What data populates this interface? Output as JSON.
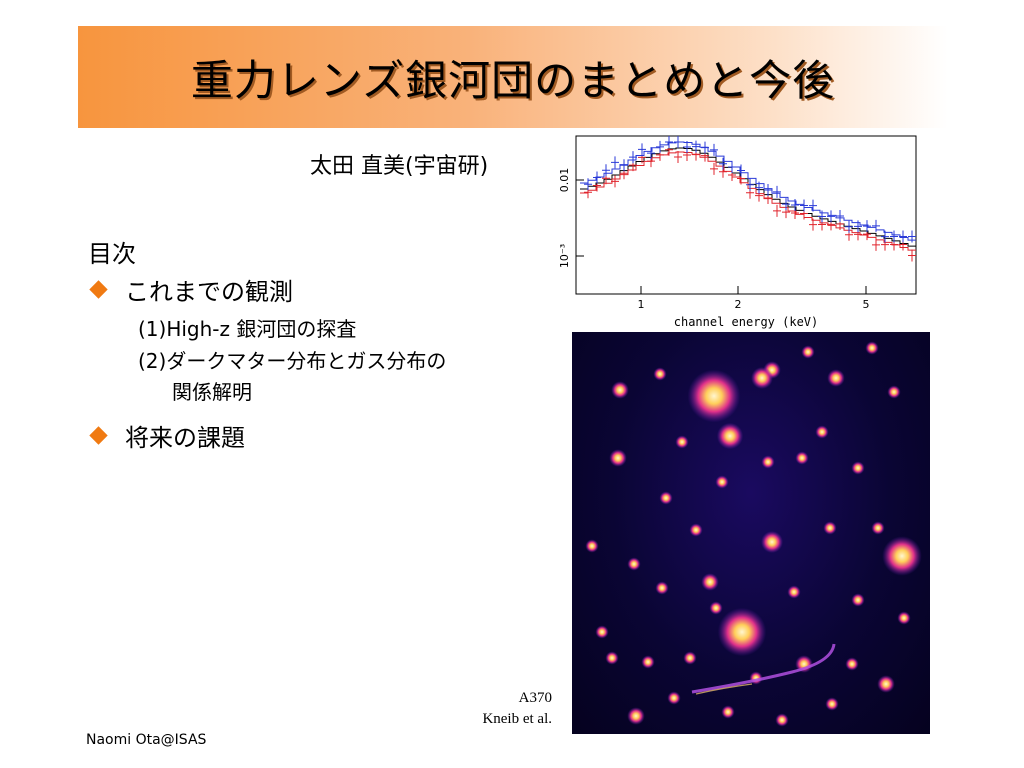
{
  "slide": {
    "title": "重力レンズ銀河団のまとめと今後",
    "author": "太田 直美(宇宙研)",
    "toc_heading": "目次",
    "bullets": [
      {
        "label": "これまでの観測"
      },
      {
        "label": "将来の課題"
      }
    ],
    "subitems": [
      "(1)High-z 銀河団の探査",
      "(2)ダークマター分布とガス分布の",
      "関係解明"
    ],
    "footer": "Naomi Ota@ISAS",
    "caption_line1": "A370",
    "caption_line2": "Kneib et al."
  },
  "spectrum_plot": {
    "xlabel": "channel energy (keV)",
    "x_ticks": [
      "1",
      "2",
      "5"
    ],
    "y_ticks": [
      "0.01",
      "10⁻³"
    ],
    "series_colors": [
      "#000000",
      "#e0242c",
      "#2a3ad8"
    ]
  },
  "image": {
    "background": "#0a0534",
    "glow": "#ffe08a"
  }
}
